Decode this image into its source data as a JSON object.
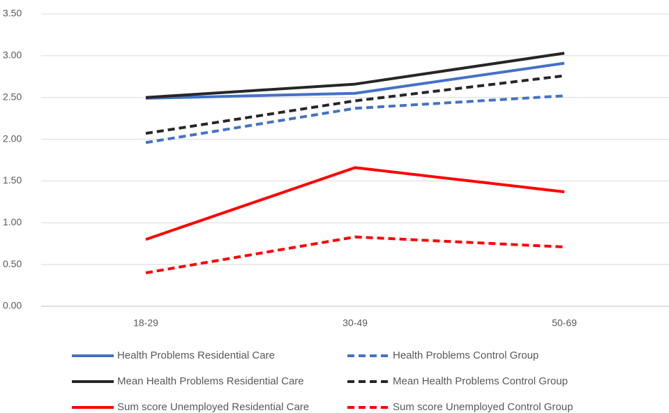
{
  "chart_data": {
    "type": "line",
    "categories": [
      "18-29",
      "30-49",
      "50-69"
    ],
    "series": [
      {
        "name": "Health Problems Residential Care",
        "color": "#4472c4",
        "dashed": false,
        "values": [
          2.49,
          2.55,
          2.91
        ]
      },
      {
        "name": "Health Problems Control Group",
        "color": "#4472c4",
        "dashed": true,
        "values": [
          1.96,
          2.37,
          2.52
        ]
      },
      {
        "name": "Mean Health Problems Residential Care",
        "color": "#262626",
        "dashed": false,
        "values": [
          2.5,
          2.66,
          3.03
        ]
      },
      {
        "name": "Mean Health Problems Control Group",
        "color": "#262626",
        "dashed": true,
        "values": [
          2.07,
          2.46,
          2.76
        ]
      },
      {
        "name": "Sum score Unemployed Residential Care",
        "color": "#ff0000",
        "dashed": false,
        "values": [
          0.8,
          1.66,
          1.37
        ]
      },
      {
        "name": "Sum score Unemployed Control Group",
        "color": "#ff0000",
        "dashed": true,
        "values": [
          0.4,
          0.83,
          0.71
        ]
      }
    ],
    "ylim": [
      0,
      3.5
    ],
    "yticks": [
      {
        "value": 0,
        "label": "0.00"
      },
      {
        "value": 0.5,
        "label": "0.50"
      },
      {
        "value": 1,
        "label": "1.00"
      },
      {
        "value": 1.5,
        "label": "1.50"
      },
      {
        "value": 2,
        "label": "2.00"
      },
      {
        "value": 2.5,
        "label": "2.50"
      },
      {
        "value": 3,
        "label": "3.00"
      },
      {
        "value": 3.5,
        "label": "3.50"
      }
    ],
    "grid": true,
    "legend": "bottom"
  }
}
